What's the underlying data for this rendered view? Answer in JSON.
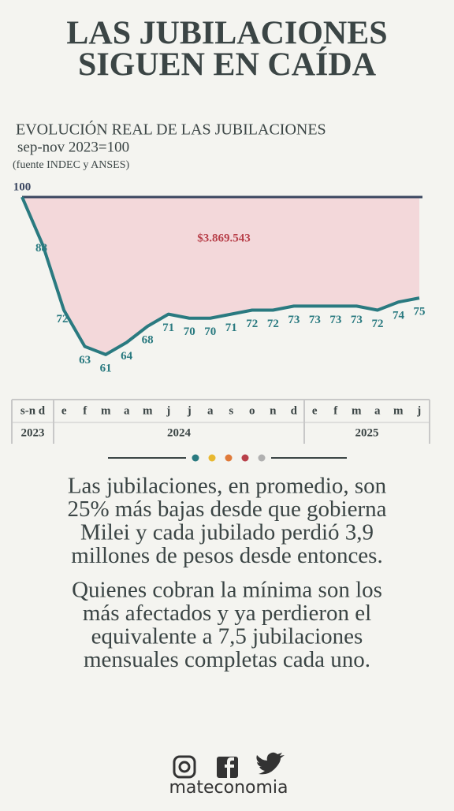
{
  "chart_data": {
    "type": "line",
    "title": [
      "LAS JUBILACIONES",
      "SIGUEN EN CAÍDA"
    ],
    "subtitle": "EVOLUCIÓN REAL DE LAS JUBILACIONES",
    "base_note": "sep-nov 2023=100",
    "source": "(fuente INDEC y ANSES)",
    "annotation": "$3.869.543",
    "values": [
      100,
      88,
      72,
      63,
      61,
      64,
      68,
      71,
      70,
      70,
      71,
      72,
      72,
      73,
      73,
      73,
      73,
      72,
      74,
      75
    ],
    "baseline": 100,
    "ylim": [
      60,
      100
    ],
    "color": "#2a7a80",
    "baseline_color": "#3a4660",
    "fill_color": "#f3d8da",
    "annotation_color": "#b8404a"
  },
  "timeline": {
    "groups": [
      {
        "months": [
          "s-n d"
        ],
        "year": "2023"
      },
      {
        "months": [
          "e",
          "f",
          "m",
          "a",
          "m",
          "j",
          "j",
          "a",
          "s",
          "o",
          "n",
          "d"
        ],
        "year": "2024"
      },
      {
        "months": [
          "e",
          "f",
          "m",
          "a",
          "m",
          "j"
        ],
        "year": "2025"
      }
    ]
  },
  "divider_colors": [
    "#2a7a80",
    "#e8b830",
    "#e07a3a",
    "#b8404a",
    "#b0b0b0"
  ],
  "paragraphs": [
    [
      "Las jubilaciones, en promedio, son",
      "25% más bajas desde que gobierna",
      "Milei y cada jubilado perdió 3,9",
      "millones de pesos desde entonces."
    ],
    [
      "Quienes cobran la mínima son los",
      "más afectados y ya perdieron el",
      "equivalente a 7,5 jubilaciones",
      "mensuales completas cada uno."
    ]
  ],
  "brand": "mateconomia"
}
